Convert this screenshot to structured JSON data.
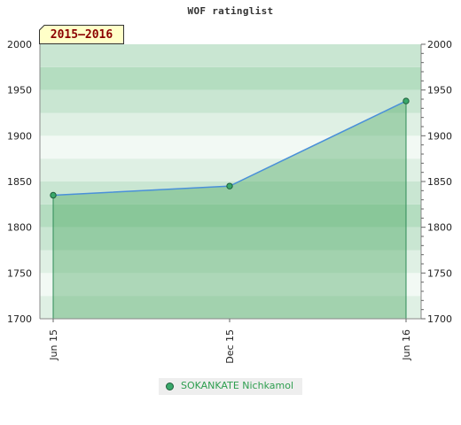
{
  "chart_data": {
    "type": "area",
    "title": "WOF ratinglist",
    "season_label": "2015–2016",
    "x": [
      "Jun 15",
      "Dec 15",
      "Jun 16"
    ],
    "series": [
      {
        "name": "SOKANKATE Nichkamol",
        "values": [
          1835,
          1845,
          1938
        ]
      }
    ],
    "ylim": [
      1700,
      2000
    ],
    "y_ticks": [
      1700,
      1750,
      1800,
      1850,
      1900,
      1950,
      2000
    ],
    "y_tick_labels": [
      "1700",
      "1750",
      "1800",
      "1850",
      "1900",
      "1950",
      "2000"
    ],
    "x_tick_labels": [
      "Jun 15",
      "Dec 15",
      "Jun 16"
    ],
    "grid": "alternating horizontal bands",
    "legend_position": "bottom-center",
    "colors": {
      "fill": "#4faa64",
      "line": "#4a90d9",
      "marker": "#3aa86b",
      "drop_line": "#2e8b57",
      "band_dark": "#b4ddc0",
      "band_light": "#dff0e4"
    }
  }
}
